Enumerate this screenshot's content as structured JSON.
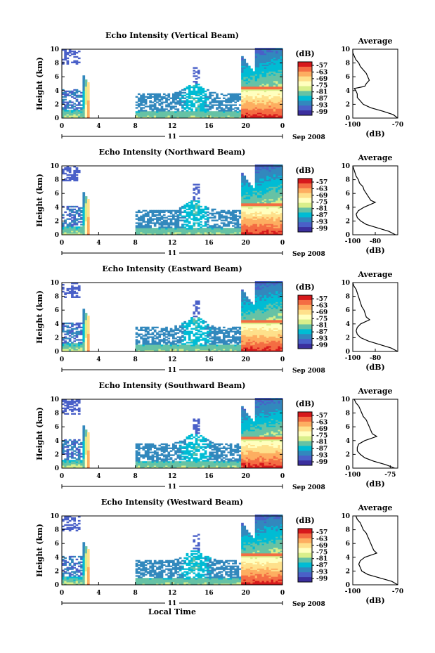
{
  "figure": {
    "xlabel": "Local Time",
    "date_label": "Sep 2008",
    "day_label": "11"
  },
  "colorbar": {
    "unit": "(dB)",
    "ticks": [
      "-57",
      "-63",
      "-69",
      "-75",
      "-81",
      "-87",
      "-93",
      "-99"
    ],
    "colors": [
      "#d7191c",
      "#f46d43",
      "#fdae61",
      "#fee08b",
      "#ffffbf",
      "#d9ef8b",
      "#66c2a5",
      "#00bcd4",
      "#3288bd",
      "#4a60c8",
      "#3b2f9e"
    ]
  },
  "avg_panel": {
    "title": "Average",
    "xunit": "(dB)"
  },
  "chart_data": [
    {
      "type": "heatmap",
      "title": "Echo Intensity (Vertical Beam)",
      "ylabel": "Height (km)",
      "xlabel": "",
      "ylim": [
        0,
        10
      ],
      "xlim": [
        0,
        24
      ],
      "xticks": [
        "0",
        "4",
        "8",
        "12",
        "16",
        "20",
        "0"
      ],
      "yticks": [
        "0",
        "2",
        "4",
        "6",
        "8",
        "10"
      ],
      "avg_xticks": [
        "-100",
        "-70"
      ],
      "avg_xlim": [
        -100,
        -70
      ],
      "avg_profile": [
        [
          -70,
          0
        ],
        [
          -73,
          0.5
        ],
        [
          -80,
          1
        ],
        [
          -88,
          1.5
        ],
        [
          -93,
          2
        ],
        [
          -95,
          2.5
        ],
        [
          -97,
          3
        ],
        [
          -97,
          3.5
        ],
        [
          -98,
          4
        ],
        [
          -99,
          4.3
        ],
        [
          -92,
          4.6
        ],
        [
          -91,
          5
        ],
        [
          -89,
          5.5
        ],
        [
          -90,
          6
        ],
        [
          -91,
          6.5
        ],
        [
          -93,
          7
        ],
        [
          -95,
          7.5
        ],
        [
          -96,
          8
        ],
        [
          -98,
          8.5
        ],
        [
          -99,
          9
        ],
        [
          -100,
          9.5
        ],
        [
          -100,
          10
        ]
      ]
    },
    {
      "type": "heatmap",
      "title": "Echo Intensity (Northward Beam)",
      "ylabel": "Height (km)",
      "xlabel": "",
      "ylim": [
        0,
        10
      ],
      "xlim": [
        0,
        24
      ],
      "xticks": [
        "0",
        "4",
        "8",
        "12",
        "16",
        "20",
        "0"
      ],
      "yticks": [
        "0",
        "2",
        "4",
        "6",
        "8",
        "10"
      ],
      "avg_xticks": [
        "-100",
        "-80"
      ],
      "avg_xlim": [
        -100,
        -60
      ],
      "avg_profile": [
        [
          -62,
          0
        ],
        [
          -68,
          0.5
        ],
        [
          -78,
          1
        ],
        [
          -88,
          1.5
        ],
        [
          -93,
          2
        ],
        [
          -96,
          2.5
        ],
        [
          -97,
          3
        ],
        [
          -95,
          3.5
        ],
        [
          -90,
          4
        ],
        [
          -80,
          4.7
        ],
        [
          -84,
          5
        ],
        [
          -86,
          5.5
        ],
        [
          -88,
          6
        ],
        [
          -90,
          6.5
        ],
        [
          -91,
          7
        ],
        [
          -94,
          7.5
        ],
        [
          -95,
          8
        ],
        [
          -97,
          8.5
        ],
        [
          -98,
          9
        ],
        [
          -99,
          9.5
        ],
        [
          -100,
          10
        ]
      ]
    },
    {
      "type": "heatmap",
      "title": "Echo Intensity (Eastward Beam)",
      "ylabel": "Height (km)",
      "xlabel": "",
      "ylim": [
        0,
        10
      ],
      "xlim": [
        0,
        24
      ],
      "xticks": [
        "0",
        "4",
        "8",
        "12",
        "16",
        "20",
        "0"
      ],
      "yticks": [
        "0",
        "2",
        "4",
        "6",
        "8",
        "10"
      ],
      "avg_xticks": [
        "-100",
        "-80"
      ],
      "avg_xlim": [
        -100,
        -60
      ],
      "avg_profile": [
        [
          -60,
          0
        ],
        [
          -66,
          0.5
        ],
        [
          -76,
          1
        ],
        [
          -86,
          1.5
        ],
        [
          -93,
          2
        ],
        [
          -96,
          2.5
        ],
        [
          -97,
          3
        ],
        [
          -96,
          3.5
        ],
        [
          -93,
          4
        ],
        [
          -85,
          4.6
        ],
        [
          -88,
          5
        ],
        [
          -89,
          5.5
        ],
        [
          -90,
          6
        ],
        [
          -92,
          6.5
        ],
        [
          -93,
          7
        ],
        [
          -94,
          7.5
        ],
        [
          -95,
          8
        ],
        [
          -96,
          8.5
        ],
        [
          -97,
          9
        ],
        [
          -99,
          9.5
        ],
        [
          -100,
          10
        ]
      ]
    },
    {
      "type": "heatmap",
      "title": "Echo Intensity (Southward Beam)",
      "ylabel": "Height (km)",
      "xlabel": "",
      "ylim": [
        0,
        10
      ],
      "xlim": [
        0,
        24
      ],
      "xticks": [
        "0",
        "4",
        "8",
        "12",
        "16",
        "20",
        "0"
      ],
      "yticks": [
        "0",
        "2",
        "4",
        "6",
        "8",
        "10"
      ],
      "avg_xticks": [
        "-100",
        "-75"
      ],
      "avg_xlim": [
        -100,
        -70
      ],
      "avg_profile": [
        [
          -72,
          0
        ],
        [
          -78,
          0.5
        ],
        [
          -86,
          1
        ],
        [
          -92,
          1.5
        ],
        [
          -95,
          2
        ],
        [
          -97,
          2.5
        ],
        [
          -97,
          3
        ],
        [
          -96,
          3.5
        ],
        [
          -92,
          4
        ],
        [
          -84,
          4.6
        ],
        [
          -87,
          5
        ],
        [
          -88,
          5.5
        ],
        [
          -89,
          6
        ],
        [
          -90,
          6.5
        ],
        [
          -91,
          7
        ],
        [
          -93,
          7.5
        ],
        [
          -94,
          8
        ],
        [
          -95,
          8.5
        ],
        [
          -96,
          9
        ],
        [
          -98,
          9.5
        ],
        [
          -99,
          10
        ]
      ]
    },
    {
      "type": "heatmap",
      "title": "Echo Intensity (Westward Beam)",
      "ylabel": "Height (km)",
      "xlabel": "Local Time",
      "ylim": [
        0,
        10
      ],
      "xlim": [
        0,
        24
      ],
      "xticks": [
        "0",
        "4",
        "8",
        "12",
        "16",
        "20",
        "0"
      ],
      "yticks": [
        "0",
        "2",
        "4",
        "6",
        "8",
        "10"
      ],
      "avg_xticks": [
        "-100",
        "-70"
      ],
      "avg_xlim": [
        -100,
        -70
      ],
      "avg_profile": [
        [
          -70,
          0
        ],
        [
          -74,
          0.5
        ],
        [
          -82,
          1
        ],
        [
          -90,
          1.5
        ],
        [
          -94,
          2
        ],
        [
          -95,
          2.5
        ],
        [
          -96,
          3
        ],
        [
          -95,
          3.5
        ],
        [
          -92,
          4
        ],
        [
          -84,
          4.6
        ],
        [
          -86,
          5
        ],
        [
          -87,
          5.5
        ],
        [
          -88,
          6
        ],
        [
          -89,
          6.5
        ],
        [
          -90,
          7
        ],
        [
          -91,
          7.5
        ],
        [
          -93,
          8
        ],
        [
          -94,
          8.5
        ],
        [
          -95,
          9
        ],
        [
          -97,
          9.5
        ],
        [
          -98,
          10
        ]
      ]
    }
  ]
}
